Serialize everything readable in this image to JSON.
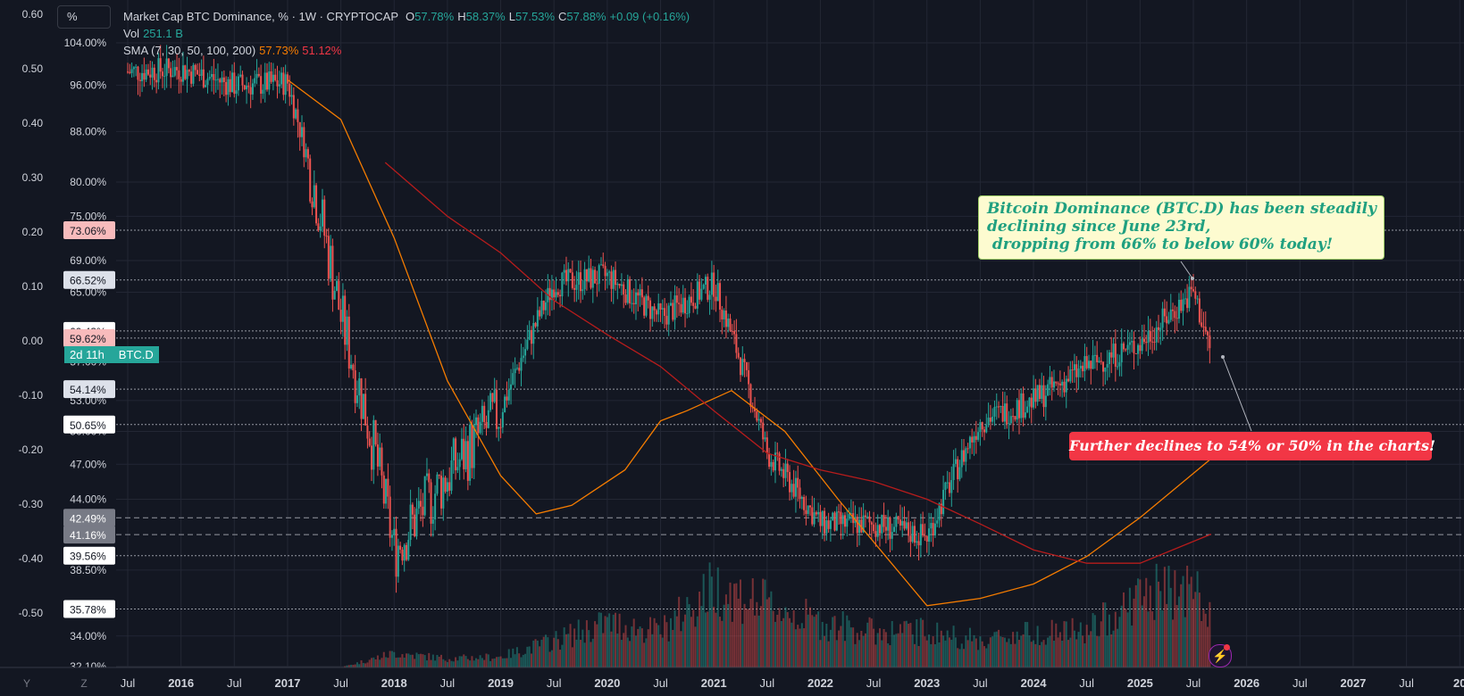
{
  "legend": {
    "title": "Market Cap BTC Dominance, % · 1W · CRYPTOCAP",
    "open_label": "O",
    "open": "57.78%",
    "high_label": "H",
    "high": "58.37%",
    "low_label": "L",
    "low": "57.53%",
    "close_label": "C",
    "close": "57.88%",
    "change": "+0.09 (+0.16%)",
    "vol_label": "Vol",
    "vol": "251.1 B",
    "sma_label": "SMA (7, 30, 50, 100, 200)",
    "sma_a": "57.73%",
    "sma_b": "51.12%"
  },
  "unit_selector": "%",
  "ticker_tag": {
    "countdown": "2d 11h",
    "symbol": "BTC.D"
  },
  "bottom_left": {
    "y_button": "Y",
    "z_button": "Z"
  },
  "annotations": {
    "green": "Bitcoin Dominance (BTC.D) has been steadily\ndeclining since June 23rd,\n dropping from 66% to below 60% today!",
    "red": "Further declines to 54% or 50% in the charts!"
  },
  "colors": {
    "up": "#26a69a",
    "down": "#ef5350",
    "sma_orange": "#f57c00",
    "sma_red": "#b71c1c",
    "background": "#131722"
  },
  "chart_data": {
    "type": "candlestick",
    "x": [
      "2015-07",
      "2016-01",
      "2016-07",
      "2017-01",
      "2017-07",
      "2018-01",
      "2018-07",
      "2019-01",
      "2019-07",
      "2020-01",
      "2020-07",
      "2021-01",
      "2021-07",
      "2022-01",
      "2022-07",
      "2023-01",
      "2023-07",
      "2024-01",
      "2024-07",
      "2025-01",
      "2025-07",
      "2025-09"
    ],
    "xticks": [
      "Jul",
      "2016",
      "Jul",
      "2017",
      "Jul",
      "2018",
      "Jul",
      "2019",
      "Jul",
      "2020",
      "Jul",
      "2021",
      "Jul",
      "2022",
      "Jul",
      "2023",
      "Jul",
      "2024",
      "Jul",
      "2025",
      "Jul",
      "2026",
      "Jul",
      "2027",
      "Jul",
      "20"
    ],
    "close": [
      98.5,
      99.0,
      96.0,
      96.5,
      62.0,
      40.0,
      46.0,
      52.0,
      66.0,
      67.0,
      62.0,
      66.0,
      48.0,
      42.0,
      42.0,
      41.0,
      51.0,
      53.0,
      56.5,
      59.0,
      65.0,
      57.9
    ],
    "volume_relative": [
      0.0,
      0.0,
      0.0,
      0.0,
      0.0,
      0.08,
      0.05,
      0.06,
      0.15,
      0.25,
      0.2,
      0.45,
      0.35,
      0.25,
      0.2,
      0.2,
      0.15,
      0.2,
      0.2,
      0.4,
      0.45,
      0.25
    ],
    "sma_orange": {
      "x": [
        "2017-01",
        "2017-07",
        "2018-01",
        "2018-07",
        "2019-01",
        "2019-05",
        "2019-09",
        "2020-03",
        "2020-07",
        "2020-10",
        "2021-03",
        "2021-09",
        "2022-03",
        "2022-09",
        "2023-01",
        "2023-07",
        "2024-01",
        "2024-07",
        "2025-01",
        "2025-09"
      ],
      "y": [
        97.0,
        90.0,
        72.0,
        55.0,
        46.0,
        42.8,
        43.5,
        46.5,
        51.0,
        52.0,
        54.0,
        50.0,
        44.0,
        39.0,
        36.0,
        36.5,
        37.5,
        39.5,
        42.5,
        47.5
      ]
    },
    "sma_red": {
      "x": [
        "2017-12",
        "2018-07",
        "2019-01",
        "2019-07",
        "2020-01",
        "2020-07",
        "2021-01",
        "2021-07",
        "2022-01",
        "2022-07",
        "2023-01",
        "2023-07",
        "2024-01",
        "2024-07",
        "2025-01",
        "2025-09"
      ],
      "y": [
        83.0,
        75.0,
        70.0,
        64.0,
        60.0,
        56.5,
        52.0,
        48.0,
        46.5,
        45.5,
        44.0,
        42.0,
        40.0,
        39.0,
        39.0,
        41.2
      ]
    },
    "price_axis": [
      "104.00%",
      "96.00%",
      "88.00%",
      "80.00%",
      "75.00%",
      "69.00%",
      "65.00%",
      "57.00%",
      "53.00%",
      "50.00%",
      "47.00%",
      "44.00%",
      "38.50%",
      "34.00%",
      "32.10%"
    ],
    "secondary_axis": [
      "0.60",
      "0.50",
      "0.40",
      "0.30",
      "0.20",
      "0.10",
      "0.00",
      "-0.10",
      "-0.20",
      "-0.30",
      "-0.40",
      "-0.50"
    ],
    "price_labels": [
      {
        "text": "73.06%",
        "style": "pink"
      },
      {
        "text": "66.52%",
        "style": "light"
      },
      {
        "text": "60.43%",
        "style": "white"
      },
      {
        "text": "59.62%",
        "style": "pink"
      },
      {
        "text": "54.14%",
        "style": "light"
      },
      {
        "text": "50.65%",
        "style": "white"
      },
      {
        "text": "42.49%",
        "style": "grey"
      },
      {
        "text": "41.16%",
        "style": "grey"
      },
      {
        "text": "39.56%",
        "style": "white"
      },
      {
        "text": "35.78%",
        "style": "white"
      }
    ],
    "horizontal_lines": [
      73.06,
      66.52,
      60.43,
      59.62,
      54.14,
      50.65,
      42.49,
      41.16,
      39.56,
      35.78
    ]
  }
}
